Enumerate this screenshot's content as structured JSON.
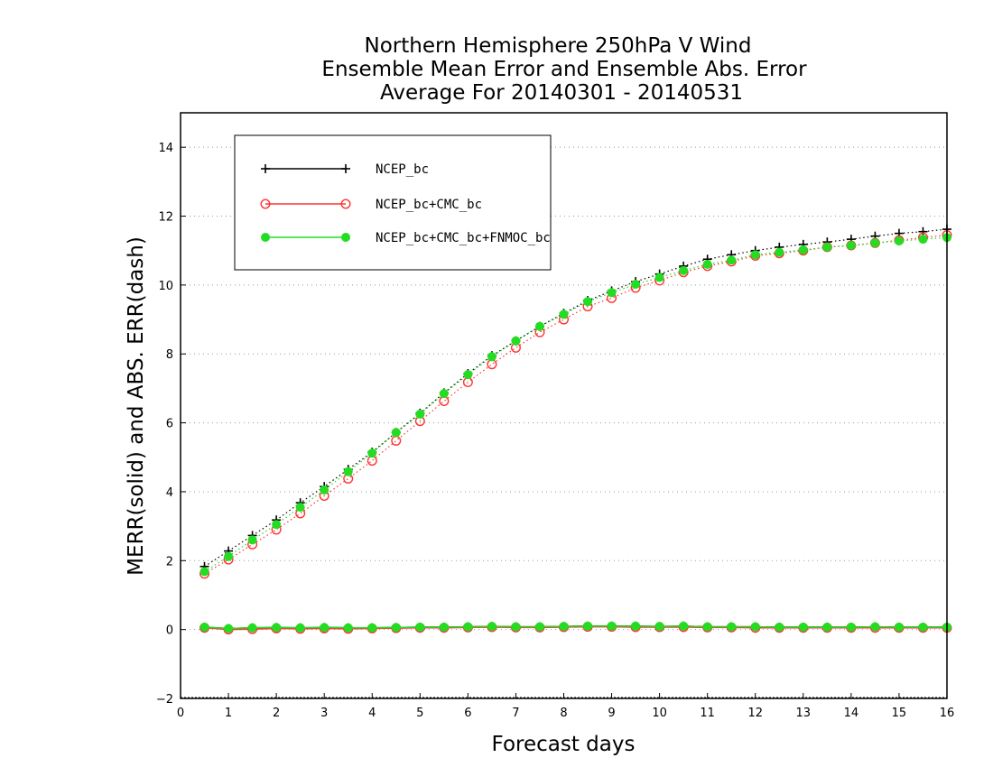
{
  "chart_data": {
    "type": "line",
    "title_lines": [
      "Northern Hemisphere 250hPa V Wind",
      "Ensemble Mean Error and Ensemble Abs. Error",
      "Average For 20140301 - 20140531"
    ],
    "xlabel": "Forecast days",
    "ylabel": "MERR(solid) and ABS. ERR(dash)",
    "xlim": [
      0,
      16
    ],
    "ylim": [
      -2,
      15
    ],
    "xticks": [
      0,
      1,
      2,
      3,
      4,
      5,
      6,
      7,
      8,
      9,
      10,
      11,
      12,
      13,
      14,
      15,
      16
    ],
    "yticks": [
      -2,
      0,
      2,
      4,
      6,
      8,
      10,
      12,
      14
    ],
    "grid": "horizontal dotted",
    "legend_position": "top-left",
    "x": [
      0.5,
      1,
      1.5,
      2,
      2.5,
      3,
      3.5,
      4,
      4.5,
      5,
      5.5,
      6,
      6.5,
      7,
      7.5,
      8,
      8.5,
      9,
      9.5,
      10,
      10.5,
      11,
      11.5,
      12,
      12.5,
      13,
      13.5,
      14,
      14.5,
      15,
      15.5,
      16
    ],
    "series": [
      {
        "name": "NCEP_bc",
        "color": "#000000",
        "marker": "plus",
        "abs_err": [
          1.83,
          2.28,
          2.73,
          3.18,
          3.68,
          4.15,
          4.65,
          5.15,
          5.72,
          6.28,
          6.87,
          7.43,
          7.95,
          8.38,
          8.8,
          9.18,
          9.55,
          9.83,
          10.1,
          10.32,
          10.55,
          10.75,
          10.88,
          11.0,
          11.1,
          11.18,
          11.25,
          11.33,
          11.42,
          11.5,
          11.55,
          11.62
        ],
        "mean_err": [
          0.07,
          0.03,
          0.05,
          0.06,
          0.05,
          0.06,
          0.05,
          0.05,
          0.06,
          0.07,
          0.07,
          0.08,
          0.09,
          0.08,
          0.08,
          0.09,
          0.1,
          0.1,
          0.1,
          0.09,
          0.1,
          0.08,
          0.08,
          0.08,
          0.07,
          0.07,
          0.07,
          0.07,
          0.08,
          0.07,
          0.07,
          0.07
        ]
      },
      {
        "name": "NCEP_bc+CMC_bc",
        "color": "#ff3333",
        "marker": "open-circle",
        "abs_err": [
          1.62,
          2.03,
          2.47,
          2.9,
          3.37,
          3.88,
          4.38,
          4.9,
          5.48,
          6.05,
          6.63,
          7.18,
          7.7,
          8.18,
          8.63,
          9.0,
          9.38,
          9.62,
          9.92,
          10.13,
          10.37,
          10.55,
          10.68,
          10.85,
          10.92,
          11.0,
          11.1,
          11.15,
          11.22,
          11.3,
          11.38,
          11.45
        ],
        "mean_err": [
          0.05,
          0.0,
          0.01,
          0.03,
          0.02,
          0.03,
          0.02,
          0.03,
          0.04,
          0.05,
          0.05,
          0.06,
          0.07,
          0.06,
          0.06,
          0.07,
          0.08,
          0.08,
          0.07,
          0.07,
          0.07,
          0.06,
          0.06,
          0.05,
          0.05,
          0.05,
          0.05,
          0.05,
          0.05,
          0.05,
          0.05,
          0.05
        ]
      },
      {
        "name": "NCEP_bc+CMC_bc+FNMOC_bc",
        "color": "#22dd22",
        "marker": "filled-circle",
        "abs_err": [
          1.68,
          2.12,
          2.6,
          3.05,
          3.55,
          4.05,
          4.58,
          5.12,
          5.72,
          6.25,
          6.85,
          7.4,
          7.92,
          8.38,
          8.8,
          9.15,
          9.52,
          9.78,
          10.02,
          10.22,
          10.42,
          10.6,
          10.72,
          10.88,
          10.95,
          11.02,
          11.1,
          11.15,
          11.22,
          11.28,
          11.33,
          11.38
        ],
        "mean_err": [
          0.07,
          0.03,
          0.05,
          0.06,
          0.05,
          0.06,
          0.05,
          0.05,
          0.06,
          0.07,
          0.07,
          0.08,
          0.09,
          0.08,
          0.08,
          0.09,
          0.1,
          0.1,
          0.1,
          0.09,
          0.1,
          0.08,
          0.08,
          0.08,
          0.07,
          0.07,
          0.07,
          0.07,
          0.08,
          0.07,
          0.07,
          0.07
        ]
      }
    ]
  }
}
